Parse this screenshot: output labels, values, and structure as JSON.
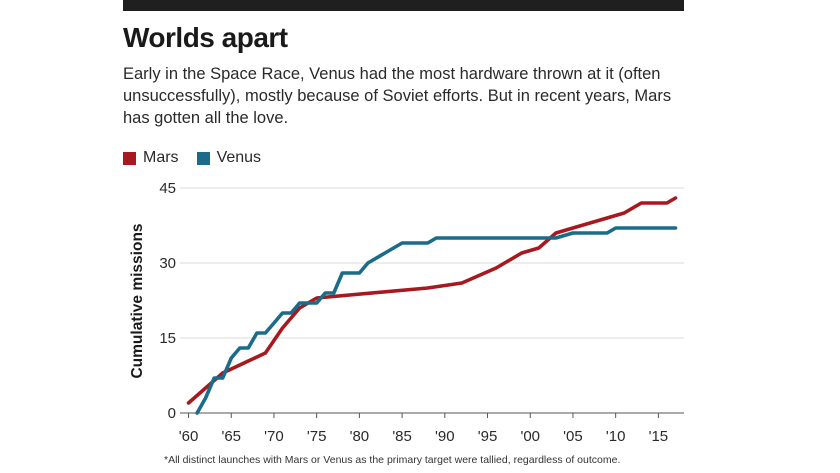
{
  "header": {
    "title": "Worlds apart",
    "subtitle": "Early in the Space Race, Venus had the most hardware thrown at it (often unsuccessfully), mostly because of Soviet efforts. But in recent years, Mars has gotten all the love."
  },
  "footnote": "*All distinct launches with Mars or Venus as the primary target were tallied, regardless of outcome.",
  "colors": {
    "mars": "#a8191f",
    "venus": "#1b6b8a"
  },
  "chart_data": {
    "type": "line",
    "title": "Worlds apart",
    "ylabel": "Cumulative missions",
    "xlabel": "",
    "xlim": [
      1959,
      2018
    ],
    "ylim": [
      0,
      45
    ],
    "yticks": [
      0,
      15,
      30,
      45
    ],
    "xticks": [
      1960,
      1965,
      1970,
      1975,
      1980,
      1985,
      1990,
      1995,
      2000,
      2005,
      2010,
      2015
    ],
    "xtick_labels": [
      "'60",
      "'65",
      "'70",
      "'75",
      "'80",
      "'85",
      "'90",
      "'95",
      "'00",
      "'05",
      "'10",
      "'15"
    ],
    "legend_position": "top-left",
    "grid": "horizontal",
    "series": [
      {
        "name": "Mars",
        "color": "#a8191f",
        "points": [
          [
            1960,
            2
          ],
          [
            1962,
            5
          ],
          [
            1964,
            8
          ],
          [
            1969,
            12
          ],
          [
            1971,
            17
          ],
          [
            1973,
            21
          ],
          [
            1975,
            23
          ],
          [
            1988,
            25
          ],
          [
            1992,
            26
          ],
          [
            1996,
            29
          ],
          [
            1998,
            31
          ],
          [
            1999,
            32
          ],
          [
            2001,
            33
          ],
          [
            2003,
            36
          ],
          [
            2005,
            37
          ],
          [
            2007,
            38
          ],
          [
            2011,
            40
          ],
          [
            2013,
            42
          ],
          [
            2016,
            42
          ],
          [
            2017,
            43
          ]
        ]
      },
      {
        "name": "Venus",
        "color": "#1b6b8a",
        "points": [
          [
            1961,
            0
          ],
          [
            1962,
            3
          ],
          [
            1963,
            7
          ],
          [
            1964,
            7
          ],
          [
            1965,
            11
          ],
          [
            1966,
            13
          ],
          [
            1967,
            13
          ],
          [
            1968,
            16
          ],
          [
            1969,
            16
          ],
          [
            1970,
            18
          ],
          [
            1971,
            20
          ],
          [
            1972,
            20
          ],
          [
            1973,
            22
          ],
          [
            1975,
            22
          ],
          [
            1976,
            24
          ],
          [
            1977,
            24
          ],
          [
            1978,
            28
          ],
          [
            1980,
            28
          ],
          [
            1981,
            30
          ],
          [
            1983,
            32
          ],
          [
            1985,
            34
          ],
          [
            1988,
            34
          ],
          [
            1989,
            35
          ],
          [
            2001,
            35
          ],
          [
            2003,
            35
          ],
          [
            2005,
            36
          ],
          [
            2009,
            36
          ],
          [
            2010,
            37
          ],
          [
            2017,
            37
          ]
        ]
      }
    ]
  }
}
